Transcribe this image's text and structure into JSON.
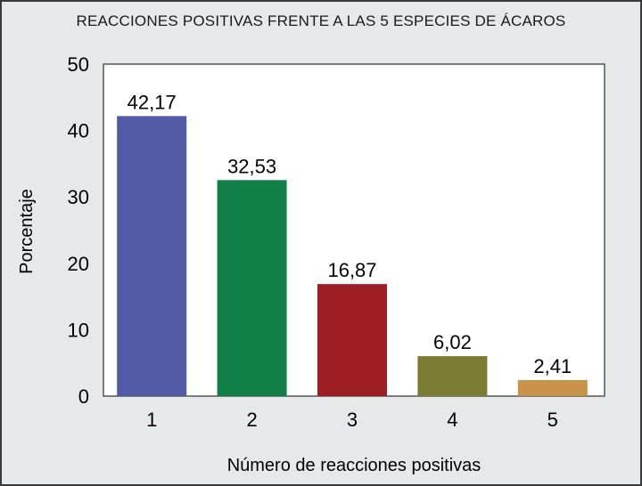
{
  "chart_data": {
    "type": "bar",
    "title": "REACCIONES POSITIVAS FRENTE A LAS 5 ESPECIES DE ÁCAROS",
    "xlabel": "Número de reacciones positivas",
    "ylabel": "Porcentaje",
    "categories": [
      "1",
      "2",
      "3",
      "4",
      "5"
    ],
    "values": [
      42.17,
      32.53,
      16.87,
      6.02,
      2.41
    ],
    "data_labels": [
      "42,17",
      "32,53",
      "16,87",
      "6,02",
      "2,41"
    ],
    "colors": [
      "#525aa8",
      "#128046",
      "#9e1f23",
      "#7a7c34",
      "#c9924a"
    ],
    "ylim": [
      0,
      50
    ],
    "yticks": [
      0,
      10,
      20,
      30,
      40,
      50
    ],
    "grid": false,
    "legend": "none"
  }
}
